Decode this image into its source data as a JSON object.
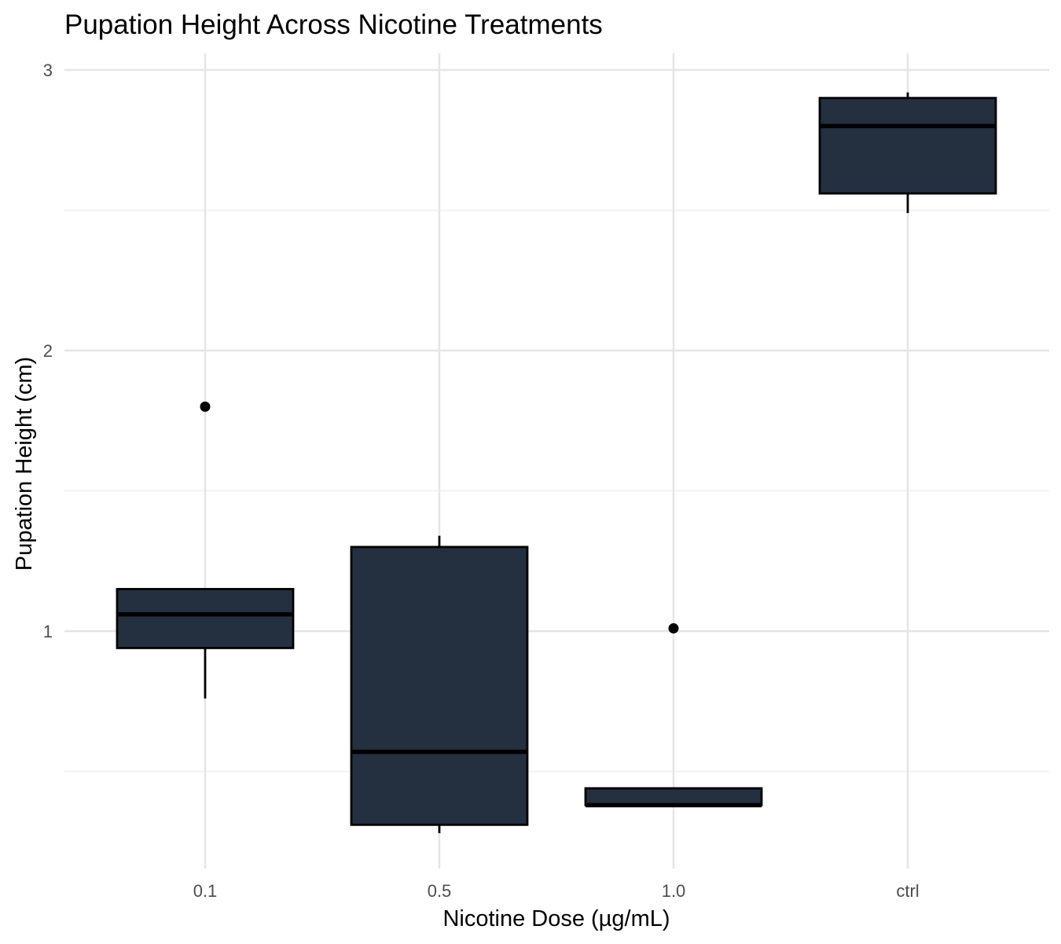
{
  "chart_data": {
    "type": "box",
    "title": "Pupation Height Across Nicotine Treatments",
    "xlabel": "Nicotine Dose (µg/mL)",
    "ylabel": "Pupation Height (cm)",
    "ylim": [
      -0.82,
      3.06
    ],
    "y_ticks": [
      1,
      2,
      3
    ],
    "y_minor_ticks": [
      0.5,
      1.5,
      2.5
    ],
    "categories": [
      "0.1",
      "0.5",
      "1.0",
      "ctrl"
    ],
    "fill_color": "#243040",
    "outline_color": "#000000",
    "grid": true,
    "legend": "none",
    "boxes": [
      {
        "category": "0.1",
        "whisker_low": 0.76,
        "q1": 0.94,
        "median": 1.06,
        "q3": 1.15,
        "whisker_high": 1.15,
        "outliers": [
          1.8
        ]
      },
      {
        "category": "0.5",
        "whisker_low": 0.28,
        "q1": 0.31,
        "median": 0.57,
        "q3": 1.3,
        "whisker_high": 1.34,
        "outliers": []
      },
      {
        "category": "1.0",
        "whisker_low": 0.38,
        "q1": 0.38,
        "median": 0.38,
        "q3": 0.44,
        "whisker_high": 0.44,
        "outliers": [
          1.01
        ]
      },
      {
        "category": "ctrl",
        "whisker_low": 2.49,
        "q1": 2.56,
        "median": 2.8,
        "q3": 2.9,
        "whisker_high": 2.92,
        "outliers": []
      }
    ]
  }
}
